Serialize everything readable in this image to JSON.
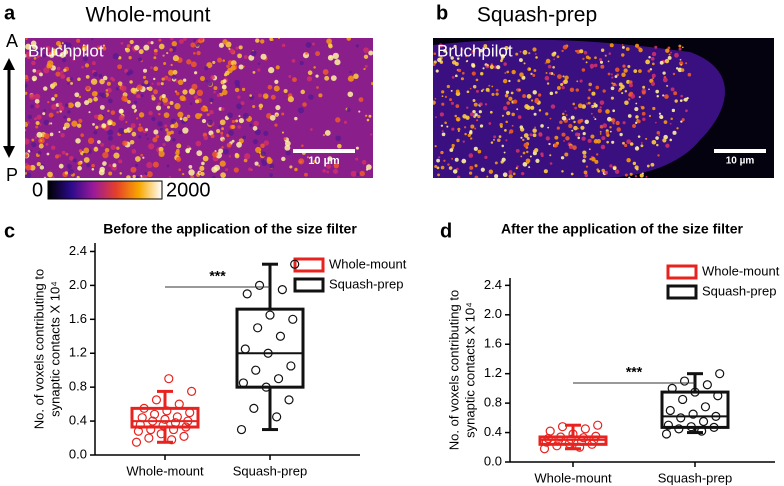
{
  "image_panels": [
    {
      "letter": "a",
      "title": "Whole-mount",
      "label": "Bruchpilot",
      "scale_bar": "10 µm",
      "axis_top": "A",
      "axis_bottom": "P",
      "colorbar_min": 0,
      "colorbar_max": 2000
    },
    {
      "letter": "b",
      "title": "Squash-prep",
      "label": "Bruchpilot",
      "scale_bar": "10 µm"
    }
  ],
  "chart_data": [
    {
      "type": "box",
      "letter": "c",
      "title": "Before the application of the size filter",
      "ylabel": [
        "No. of voxels contributing to",
        "synaptic contacts X 10⁴"
      ],
      "categories": [
        "Whole-mount",
        "Squash-prep"
      ],
      "ylim": [
        0,
        2.5
      ],
      "yticks": [
        {
          "value": 0,
          "label": "0.0"
        },
        0.4,
        0.8,
        1.2,
        1.6,
        {
          "value": 2,
          "label": "2.0"
        },
        2.4
      ],
      "annotation": "***",
      "series": [
        {
          "name": "Whole-mount",
          "color": "#e8231f",
          "whisker_low": 0.15,
          "q1": 0.33,
          "median": 0.4,
          "q3": 0.55,
          "whisker_high": 0.75,
          "points": [
            0.15,
            0.18,
            0.2,
            0.22,
            0.25,
            0.28,
            0.3,
            0.3,
            0.33,
            0.35,
            0.36,
            0.38,
            0.4,
            0.4,
            0.42,
            0.44,
            0.45,
            0.48,
            0.5,
            0.52,
            0.55,
            0.6,
            0.65,
            0.75,
            0.9
          ]
        },
        {
          "name": "Squash-prep",
          "color": "#111111",
          "whisker_low": 0.3,
          "q1": 0.8,
          "median": 1.2,
          "q3": 1.72,
          "whisker_high": 2.25,
          "points": [
            0.3,
            0.45,
            0.55,
            0.65,
            0.8,
            0.85,
            0.9,
            1.0,
            1.05,
            1.2,
            1.25,
            1.4,
            1.5,
            1.6,
            1.65,
            1.9,
            1.95,
            2.0,
            2.25
          ]
        }
      ]
    },
    {
      "type": "box",
      "letter": "d",
      "title": "After the application of the size filter",
      "ylabel": [
        "No. of voxels contributing to",
        "synaptic contacts X 10⁴"
      ],
      "categories": [
        "Whole-mount",
        "Squash-prep"
      ],
      "ylim": [
        0,
        2.5
      ],
      "yticks": [
        {
          "value": 0,
          "label": "0.0"
        },
        0.4,
        0.8,
        1.2,
        1.6,
        {
          "value": 2,
          "label": "2.0"
        },
        2.4
      ],
      "annotation": "***",
      "series": [
        {
          "name": "Whole-mount",
          "color": "#e8231f",
          "whisker_low": 0.18,
          "q1": 0.24,
          "median": 0.3,
          "q3": 0.34,
          "whisker_high": 0.5,
          "points": [
            0.18,
            0.2,
            0.22,
            0.24,
            0.25,
            0.27,
            0.28,
            0.3,
            0.3,
            0.31,
            0.32,
            0.33,
            0.34,
            0.35,
            0.38,
            0.42,
            0.45,
            0.48,
            0.5
          ]
        },
        {
          "name": "Squash-prep",
          "color": "#111111",
          "whisker_low": 0.4,
          "q1": 0.47,
          "median": 0.62,
          "q3": 0.95,
          "whisker_high": 1.2,
          "points": [
            0.38,
            0.42,
            0.45,
            0.47,
            0.48,
            0.5,
            0.55,
            0.6,
            0.62,
            0.65,
            0.7,
            0.75,
            0.85,
            0.9,
            0.95,
            1.0,
            1.05,
            1.1,
            1.2
          ]
        }
      ]
    }
  ]
}
